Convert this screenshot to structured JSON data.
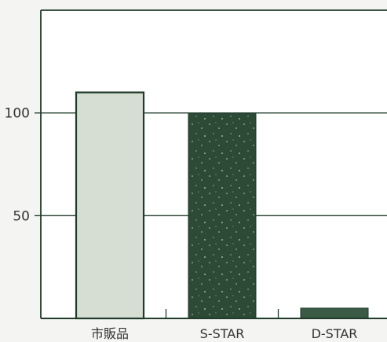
{
  "chart_data": {
    "type": "bar",
    "categories": [
      "市販品",
      "S-STAR",
      "D-STAR"
    ],
    "values": [
      110,
      100,
      5
    ],
    "ylim": [
      0,
      150
    ],
    "y_ticks": [
      50,
      100
    ],
    "grid": "horizontal",
    "bar_colors": [
      "#d6ddd2",
      "#2c4a36",
      "#3a5a43"
    ],
    "bar_pattern": [
      null,
      "speckled",
      null
    ],
    "axis_color": "#1f3b2a"
  }
}
